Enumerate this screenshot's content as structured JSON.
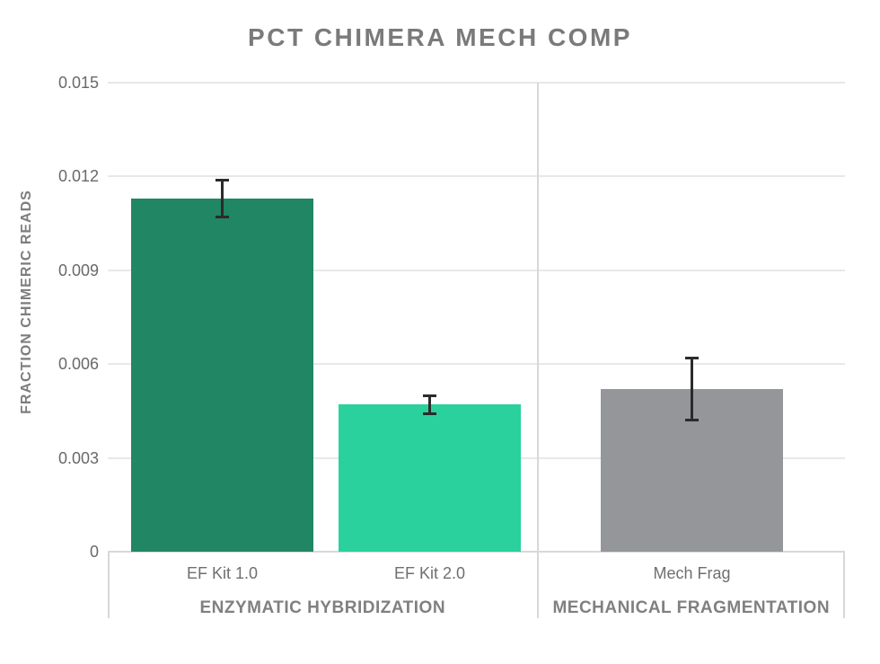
{
  "chart_data": {
    "type": "bar",
    "title": "PCT CHIMERA MECH COMP",
    "ylabel": "FRACTION CHIMERIC READS",
    "xlabel": "",
    "ylim": [
      0,
      0.015
    ],
    "yticks": [
      0,
      0.003,
      0.006,
      0.009,
      0.012,
      0.015
    ],
    "ytick_labels": [
      "0",
      "0.003",
      "0.006",
      "0.009",
      "0.012",
      "0.015"
    ],
    "grid": true,
    "legend_position": "none",
    "error_bars": true,
    "facets": [
      {
        "label": "ENZYMATIC HYBRIDIZATION",
        "bars": [
          {
            "category": "EF Kit 1.0",
            "value": 0.0113,
            "error": 0.0006,
            "color": "#218663"
          },
          {
            "category": "EF Kit 2.0",
            "value": 0.0047,
            "error": 0.0003,
            "color": "#2BD19C"
          }
        ]
      },
      {
        "label": "MECHANICAL FRAGMENTATION",
        "bars": [
          {
            "category": "Mech Frag",
            "value": 0.0052,
            "error": 0.001,
            "color": "#95969A"
          }
        ]
      }
    ]
  },
  "colors": {
    "title_text": "#7A7A7A",
    "axis_text": "#696969",
    "category_text": "#6F6F6F",
    "facet_text": "#808080",
    "gridline": "#E8E8E8",
    "border": "#D8D8D8",
    "error_bar": "#2B2B2B",
    "background": "#FFFFFF"
  }
}
